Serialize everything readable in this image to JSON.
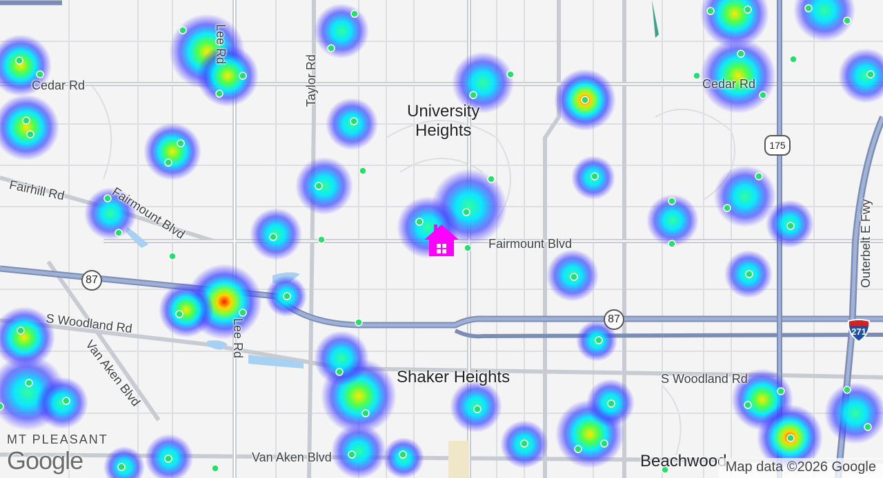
{
  "map": {
    "road_labels": {
      "cedar_w": "Cedar Rd",
      "cedar_e": "Cedar Rd",
      "lee_n": "Lee Rd",
      "lee_s": "Lee Rd",
      "taylor": "Taylor Rd",
      "fairhill": "Fairhill Rd",
      "fairmount_w": "Fairmount Blvd",
      "fairmount_e": "Fairmount Blvd",
      "s_woodland_w": "S Woodland Rd",
      "s_woodland_e": "S Woodland Rd",
      "van_aken_diag": "Van Aken Blvd",
      "van_aken": "Van Aken Blvd",
      "outerbelt": "Outerbelt E Fwy"
    },
    "places": {
      "university_heights": "University\nHeights",
      "shaker_heights": "Shaker Heights",
      "beachwood": "Beachwood",
      "mt_pleasant": "MT PLEASANT"
    },
    "shields": {
      "route_87_w": "87",
      "route_87_e": "87",
      "route_175": "175",
      "interstate_271": "271"
    },
    "home_marker": "home-icon",
    "colors": {
      "home_marker": "#ff00ff",
      "point": "#22e06a",
      "heat_low": "#5b4cff",
      "heat_mid": "#00f0ff",
      "heat_high": "#ffee00",
      "heat_peak": "#ff3300"
    }
  },
  "footer": {
    "logo": "Google",
    "attribution": "Map data ©2026 Google"
  }
}
